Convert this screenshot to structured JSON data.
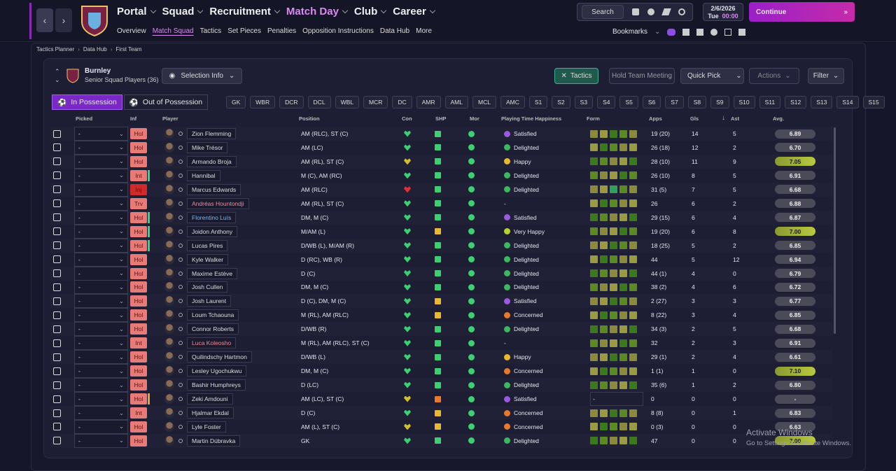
{
  "header": {
    "menus": [
      "Portal",
      "Squad",
      "Recruitment",
      "Match Day",
      "Club",
      "Career"
    ],
    "submenu": [
      "Overview",
      "Match Squad",
      "Tactics",
      "Set Pieces",
      "Penalties",
      "Opposition Instructions",
      "Data Hub",
      "More"
    ],
    "search": "Search",
    "date": "2/6/2026",
    "day": "Tue",
    "time": "00:00",
    "continue": "Continue",
    "bookmarks": "Bookmarks"
  },
  "breadcrumb": [
    "Tactics Planner",
    "Data Hub",
    "First Team"
  ],
  "team": {
    "name": "Burnley",
    "subtitle": "Senior Squad Players (36)"
  },
  "toolbar": {
    "selection": "Selection Info",
    "tactics": "Tactics",
    "meeting": "Hold Team Meeting",
    "quick_pick": "Quick Pick",
    "actions": "Actions",
    "filter": "Filter"
  },
  "tabs": [
    "In Possession",
    "Out of Possession"
  ],
  "positions": [
    "GK",
    "WBR",
    "DCR",
    "DCL",
    "WBL",
    "MCR",
    "DC",
    "AMR",
    "AML",
    "MCL",
    "AMC",
    "S1",
    "S2",
    "S3",
    "S4",
    "S5",
    "S6",
    "S7",
    "S8",
    "S9",
    "S10",
    "S11",
    "S12",
    "S13",
    "S14",
    "S15"
  ],
  "table": {
    "columns": [
      "Picked",
      "Inf",
      "Player",
      "Position",
      "Con",
      "SHP",
      "Mor",
      "Playing Time Happiness",
      "Form",
      "Apps",
      "Gls",
      "Ast",
      "Avg."
    ],
    "rows": [
      {
        "picked": "-",
        "inf": "Hol",
        "name": "Zion Flemming",
        "position": "AM (RLC), ST (C)",
        "happiness": "Satisfied",
        "apps": "19 (20)",
        "gls": 14,
        "ast": 5,
        "avg": "6.89"
      },
      {
        "picked": "-",
        "inf": "Hol",
        "name": "Mike Trésor",
        "position": "AM (LC)",
        "happiness": "Delighted",
        "apps": "26 (18)",
        "gls": 12,
        "ast": 2,
        "avg": "6.70"
      },
      {
        "picked": "-",
        "inf": "Hol",
        "name": "Armando Broja",
        "position": "AM (RL), ST (C)",
        "happiness": "Happy",
        "apps": "28 (10)",
        "gls": 11,
        "ast": 9,
        "avg": "7.05"
      },
      {
        "picked": "-",
        "inf": "Int",
        "name": "Hannibal",
        "position": "M (C), AM (RC)",
        "happiness": "Delighted",
        "apps": "26 (10)",
        "gls": 8,
        "ast": 5,
        "avg": "6.91"
      },
      {
        "picked": "-",
        "inf": "Inj",
        "name": "Marcus Edwards",
        "position": "AM (RLC)",
        "happiness": "Delighted",
        "apps": "31 (5)",
        "gls": 7,
        "ast": 5,
        "avg": "6.68"
      },
      {
        "picked": "-",
        "inf": "Trv",
        "name": "Andréas Hountondji",
        "position": "AM (RL), ST (C)",
        "happiness": "-",
        "apps": "26",
        "gls": 6,
        "ast": 2,
        "avg": "6.88"
      },
      {
        "picked": "-",
        "inf": "Hol",
        "name": "Florentino Luís",
        "position": "DM, M (C)",
        "happiness": "Satisfied",
        "apps": "29 (15)",
        "gls": 6,
        "ast": 4,
        "avg": "6.87"
      },
      {
        "picked": "-",
        "inf": "Hol",
        "name": "Joidon Anthony",
        "position": "M/AM (L)",
        "happiness": "Very Happy",
        "apps": "19 (20)",
        "gls": 6,
        "ast": 8,
        "avg": "7.00"
      },
      {
        "picked": "-",
        "inf": "Hol",
        "name": "Lucas Pires",
        "position": "D/WB (L), M/AM (R)",
        "happiness": "Delighted",
        "apps": "18 (25)",
        "gls": 5,
        "ast": 2,
        "avg": "6.85"
      },
      {
        "picked": "-",
        "inf": "Hol",
        "name": "Kyle Walker",
        "position": "D (RC), WB (R)",
        "happiness": "Delighted",
        "apps": "44",
        "gls": 5,
        "ast": 12,
        "avg": "6.94"
      },
      {
        "picked": "-",
        "inf": "Hol",
        "name": "Maxime Estève",
        "position": "D (C)",
        "happiness": "Delighted",
        "apps": "44 (1)",
        "gls": 4,
        "ast": 0,
        "avg": "6.79"
      },
      {
        "picked": "-",
        "inf": "Hol",
        "name": "Josh Cullen",
        "position": "DM, M (C)",
        "happiness": "Delighted",
        "apps": "38 (2)",
        "gls": 4,
        "ast": 6,
        "avg": "6.72"
      },
      {
        "picked": "-",
        "inf": "Hol",
        "name": "Josh Laurent",
        "position": "D (C), DM, M (C)",
        "happiness": "Satisfied",
        "apps": "2 (27)",
        "gls": 3,
        "ast": 3,
        "avg": "6.77"
      },
      {
        "picked": "-",
        "inf": "Hol",
        "name": "Loum Tchaouna",
        "position": "M (RL), AM (RLC)",
        "happiness": "Concerned",
        "apps": "8 (22)",
        "gls": 3,
        "ast": 4,
        "avg": "6.85"
      },
      {
        "picked": "-",
        "inf": "Hol",
        "name": "Connor Roberts",
        "position": "D/WB (R)",
        "happiness": "Delighted",
        "apps": "34 (3)",
        "gls": 2,
        "ast": 5,
        "avg": "6.68"
      },
      {
        "picked": "-",
        "inf": "Int",
        "name": "Luca Koleosho",
        "position": "M (RL), AM (RLC), ST (C)",
        "happiness": "-",
        "apps": "32",
        "gls": 2,
        "ast": 3,
        "avg": "6.91"
      },
      {
        "picked": "-",
        "inf": "Hol",
        "name": "Quilindschy Hartmon",
        "position": "D/WB (L)",
        "happiness": "Happy",
        "apps": "29 (1)",
        "gls": 2,
        "ast": 4,
        "avg": "6.61"
      },
      {
        "picked": "-",
        "inf": "Hol",
        "name": "Lesley Ugochukwu",
        "position": "DM, M (C)",
        "happiness": "Concerned",
        "apps": "1 (1)",
        "gls": 1,
        "ast": 0,
        "avg": "7.10"
      },
      {
        "picked": "-",
        "inf": "Hol",
        "name": "Bashir Humphreys",
        "position": "D (LC)",
        "happiness": "Delighted",
        "apps": "35 (6)",
        "gls": 1,
        "ast": 2,
        "avg": "6.80"
      },
      {
        "picked": "-",
        "inf": "Hol",
        "name": "Zeki Amdouni",
        "position": "AM (LC), ST (C)",
        "happiness": "Satisfied",
        "form": "-",
        "apps": "0",
        "gls": 0,
        "ast": 0,
        "avg": "-"
      },
      {
        "picked": "-",
        "inf": "Int",
        "name": "Hjalmar Ekdal",
        "position": "D (C)",
        "happiness": "Concerned",
        "apps": "8 (8)",
        "gls": 0,
        "ast": 1,
        "avg": "6.83"
      },
      {
        "picked": "-",
        "inf": "Hol",
        "name": "Lyle Foster",
        "position": "AM (L), ST (C)",
        "happiness": "Concerned",
        "apps": "0 (3)",
        "gls": 0,
        "ast": 0,
        "avg": "6.63"
      },
      {
        "picked": "-",
        "inf": "Hol",
        "name": "Martin Dúbravka",
        "position": "GK",
        "happiness": "Delighted",
        "apps": "47",
        "gls": 0,
        "ast": 0,
        "avg": "7.00"
      }
    ]
  },
  "watermark": {
    "title": "Activate Windows",
    "text": "Go to Settings to activate Windows."
  }
}
